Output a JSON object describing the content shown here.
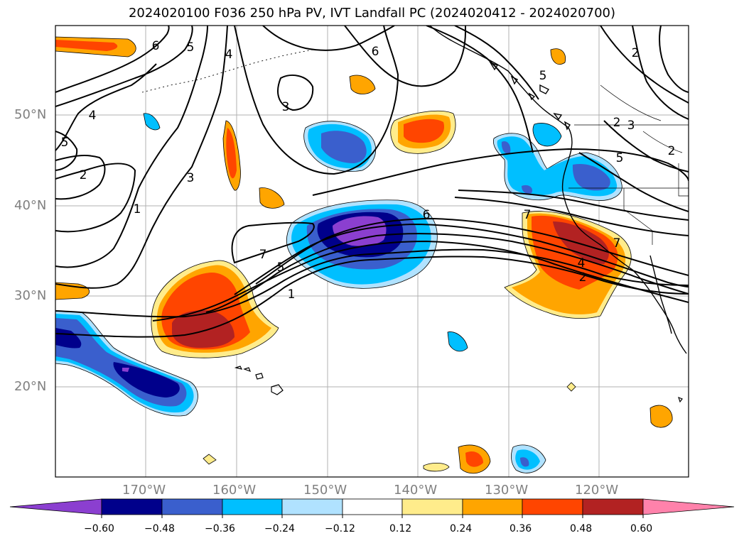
{
  "title": "2024020100 F036 250 hPa PV, IVT Landfall PC (2024020412 - 2024020700)",
  "map": {
    "lon_labels": [
      "170°W",
      "160°W",
      "150°W",
      "140°W",
      "130°W",
      "120°W"
    ],
    "lat_labels": [
      "50°N",
      "40°N",
      "30°N",
      "20°N"
    ],
    "contour_labels": [
      "6",
      "5",
      "4",
      "6",
      "5",
      "4",
      "5",
      "2",
      "3",
      "3",
      "1",
      "2",
      "6",
      "7",
      "5",
      "1",
      "7",
      "7",
      "4",
      "2",
      "5",
      "2",
      "3",
      "2"
    ]
  },
  "colorbar": {
    "ticks": [
      "−0.60",
      "−0.48",
      "−0.36",
      "−0.24",
      "−0.12",
      "0.12",
      "0.24",
      "0.36",
      "0.48",
      "0.60"
    ],
    "colors": [
      "#8b3fd0",
      "#00008b",
      "#3a5fcd",
      "#00bfff",
      "#b0e2ff",
      "#ffffff",
      "#ffec8b",
      "#ffa500",
      "#ff4500",
      "#b22222",
      "#ff82ab"
    ]
  }
}
